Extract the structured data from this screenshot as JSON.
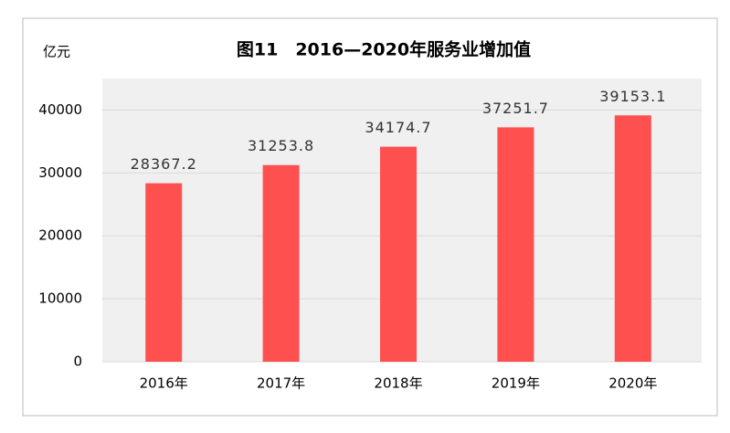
{
  "chart_data": {
    "type": "bar",
    "title": "图11　2016—2020年服务业增加值",
    "y_label": "亿元",
    "categories": [
      "2016年",
      "2017年",
      "2018年",
      "2019年",
      "2020年"
    ],
    "values": [
      28367.2,
      31253.8,
      34174.7,
      37251.7,
      39153.1
    ],
    "color": "#ff5050",
    "ylim": [
      0,
      45000
    ],
    "yticks": [
      0,
      10000,
      20000,
      30000,
      40000
    ],
    "grid": true
  }
}
